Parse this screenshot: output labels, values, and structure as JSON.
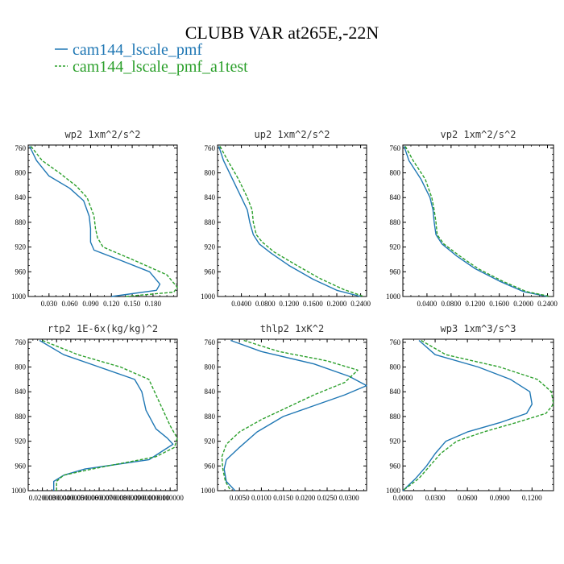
{
  "figure": {
    "title": "CLUBB VAR at265E,-22N",
    "legend": [
      {
        "name": "cam144_lscale_pmf",
        "color": "#1f77b4",
        "dash": "solid"
      },
      {
        "name": "cam144_lscale_pmf_a1test",
        "color": "#2ca02c",
        "dash": "dashed"
      }
    ]
  },
  "chart_data": [
    {
      "type": "line",
      "title": "wp2  1xm^2/s^2",
      "xlim": [
        0.0,
        0.215
      ],
      "ylim": [
        755,
        1000
      ],
      "y_inverted": true,
      "yticks": [
        760,
        800,
        840,
        880,
        920,
        960,
        1000
      ],
      "xticks": [
        0.03,
        0.06,
        0.09,
        0.12,
        0.15,
        0.18
      ],
      "xtick_labels": [
        "0.030",
        "0.060",
        "0.090",
        "0.120",
        "0.150",
        "0.180"
      ],
      "series": [
        {
          "name": "cam144_lscale_pmf",
          "x": [
            0.002,
            0.012,
            0.03,
            0.06,
            0.08,
            0.088,
            0.09,
            0.09,
            0.095,
            0.13,
            0.175,
            0.19,
            0.185,
            0.12
          ],
          "y": [
            757,
            780,
            805,
            825,
            845,
            870,
            890,
            912,
            925,
            940,
            960,
            980,
            990,
            1000
          ]
        },
        {
          "name": "cam144_lscale_pmf_a1test",
          "x": [
            0.004,
            0.02,
            0.045,
            0.07,
            0.085,
            0.095,
            0.097,
            0.1,
            0.108,
            0.15,
            0.2,
            0.215,
            0.21,
            0.14
          ],
          "y": [
            757,
            780,
            800,
            822,
            840,
            870,
            890,
            905,
            920,
            940,
            965,
            985,
            993,
            1000
          ]
        }
      ]
    },
    {
      "type": "line",
      "title": "up2  1xm^2/s^2",
      "xlim": [
        0.0,
        0.25
      ],
      "ylim": [
        755,
        1000
      ],
      "y_inverted": true,
      "yticks": [
        760,
        800,
        840,
        880,
        920,
        960,
        1000
      ],
      "xticks": [
        0.04,
        0.08,
        0.12,
        0.16,
        0.2,
        0.24
      ],
      "xtick_labels": [
        "0.0400",
        "0.0800",
        "0.1200",
        "0.1600",
        "0.2000",
        "0.2400"
      ],
      "series": [
        {
          "name": "cam144_lscale_pmf",
          "x": [
            0.002,
            0.01,
            0.025,
            0.04,
            0.05,
            0.054,
            0.06,
            0.07,
            0.09,
            0.12,
            0.16,
            0.2,
            0.24
          ],
          "y": [
            757,
            780,
            810,
            840,
            860,
            880,
            900,
            915,
            930,
            950,
            972,
            990,
            1000
          ]
        },
        {
          "name": "cam144_lscale_pmf_a1test",
          "x": [
            0.004,
            0.017,
            0.035,
            0.05,
            0.058,
            0.06,
            0.065,
            0.075,
            0.095,
            0.13,
            0.17,
            0.21,
            0.245
          ],
          "y": [
            757,
            780,
            810,
            840,
            860,
            880,
            900,
            912,
            928,
            948,
            970,
            988,
            1000
          ]
        }
      ]
    },
    {
      "type": "line",
      "title": "vp2  1xm^2/s^2",
      "xlim": [
        0.0,
        0.25
      ],
      "ylim": [
        755,
        1000
      ],
      "y_inverted": true,
      "yticks": [
        760,
        800,
        840,
        880,
        920,
        960,
        1000
      ],
      "xticks": [
        0.04,
        0.08,
        0.12,
        0.16,
        0.2,
        0.24
      ],
      "xtick_labels": [
        "0.0400",
        "0.0800",
        "0.1200",
        "0.1600",
        "0.2000",
        "0.2400"
      ],
      "series": [
        {
          "name": "cam144_lscale_pmf",
          "x": [
            0.002,
            0.01,
            0.03,
            0.045,
            0.05,
            0.052,
            0.055,
            0.065,
            0.09,
            0.12,
            0.16,
            0.2,
            0.24
          ],
          "y": [
            757,
            780,
            810,
            840,
            860,
            880,
            900,
            915,
            935,
            955,
            975,
            992,
            1000
          ]
        },
        {
          "name": "cam144_lscale_pmf_a1test",
          "x": [
            0.004,
            0.017,
            0.037,
            0.048,
            0.052,
            0.055,
            0.057,
            0.068,
            0.095,
            0.125,
            0.165,
            0.205,
            0.245
          ],
          "y": [
            757,
            780,
            810,
            840,
            860,
            880,
            900,
            915,
            935,
            955,
            975,
            992,
            1000
          ]
        }
      ]
    },
    {
      "type": "line",
      "title": "rtp2  1E-6x(kg/kg)^2",
      "xlim": [
        0.01,
        0.115
      ],
      "ylim": [
        755,
        1000
      ],
      "y_inverted": true,
      "yticks": [
        760,
        800,
        840,
        880,
        920,
        960,
        1000
      ],
      "xticks": [
        0.02,
        0.03,
        0.04,
        0.05,
        0.06,
        0.07,
        0.08,
        0.09,
        0.1,
        0.11
      ],
      "xtick_labels": [
        "0.020000",
        "0.030000",
        "0.040000",
        "0.050000",
        "0.060000",
        "0.070000",
        "0.080000",
        "0.090000",
        "0.100000",
        "0.110000"
      ],
      "series": [
        {
          "name": "cam144_lscale_pmf",
          "x": [
            0.018,
            0.035,
            0.06,
            0.085,
            0.09,
            0.093,
            0.1,
            0.108,
            0.112,
            0.095,
            0.05,
            0.035,
            0.028,
            0.028
          ],
          "y": [
            757,
            780,
            800,
            820,
            840,
            870,
            900,
            915,
            925,
            950,
            965,
            975,
            985,
            1000
          ]
        },
        {
          "name": "cam144_lscale_pmf_a1test",
          "x": [
            0.02,
            0.045,
            0.075,
            0.095,
            0.1,
            0.105,
            0.11,
            0.115,
            0.113,
            0.1,
            0.055,
            0.035,
            0.03,
            0.03
          ],
          "y": [
            757,
            780,
            800,
            820,
            845,
            870,
            895,
            915,
            930,
            945,
            965,
            975,
            985,
            1000
          ]
        }
      ]
    },
    {
      "type": "line",
      "title": "thlp2  1xK^2",
      "xlim": [
        0.0,
        0.034
      ],
      "ylim": [
        755,
        1000
      ],
      "y_inverted": true,
      "yticks": [
        760,
        800,
        840,
        880,
        920,
        960,
        1000
      ],
      "xticks": [
        0.005,
        0.01,
        0.015,
        0.02,
        0.025,
        0.03
      ],
      "xtick_labels": [
        "0.0050",
        "0.0100",
        "0.0150",
        "0.0200",
        "0.0250",
        "0.0300"
      ],
      "series": [
        {
          "name": "cam144_lscale_pmf",
          "x": [
            0.003,
            0.01,
            0.022,
            0.03,
            0.034,
            0.029,
            0.021,
            0.015,
            0.009,
            0.005,
            0.002,
            0.0015,
            0.002,
            0.004
          ],
          "y": [
            757,
            775,
            795,
            815,
            830,
            845,
            865,
            880,
            905,
            930,
            950,
            965,
            985,
            1000
          ]
        },
        {
          "name": "cam144_lscale_pmf_a1test",
          "x": [
            0.006,
            0.014,
            0.025,
            0.032,
            0.029,
            0.022,
            0.016,
            0.01,
            0.005,
            0.002,
            0.001,
            0.0012,
            0.0018,
            0.003
          ],
          "y": [
            757,
            775,
            790,
            805,
            825,
            845,
            865,
            885,
            905,
            925,
            945,
            965,
            985,
            1000
          ]
        }
      ]
    },
    {
      "type": "line",
      "title": "wp3  1xm^3/s^3",
      "xlim": [
        0.0,
        0.14
      ],
      "ylim": [
        755,
        1000
      ],
      "y_inverted": true,
      "yticks": [
        760,
        800,
        840,
        880,
        920,
        960,
        1000
      ],
      "xticks": [
        0.0,
        0.03,
        0.06,
        0.09,
        0.12
      ],
      "xtick_labels": [
        "0.0000",
        "0.0300",
        "0.0600",
        "0.0900",
        "0.1200"
      ],
      "series": [
        {
          "name": "cam144_lscale_pmf",
          "x": [
            0.015,
            0.03,
            0.07,
            0.1,
            0.118,
            0.12,
            0.115,
            0.09,
            0.06,
            0.04,
            0.03,
            0.022,
            0.012,
            0.0
          ],
          "y": [
            757,
            780,
            800,
            820,
            840,
            860,
            875,
            890,
            905,
            920,
            940,
            960,
            980,
            1000
          ]
        },
        {
          "name": "cam144_lscale_pmf_a1test",
          "x": [
            0.017,
            0.04,
            0.09,
            0.125,
            0.138,
            0.14,
            0.133,
            0.105,
            0.075,
            0.05,
            0.035,
            0.025,
            0.015,
            0.0
          ],
          "y": [
            757,
            780,
            800,
            820,
            840,
            860,
            875,
            890,
            905,
            920,
            940,
            960,
            980,
            1000
          ]
        }
      ]
    }
  ]
}
